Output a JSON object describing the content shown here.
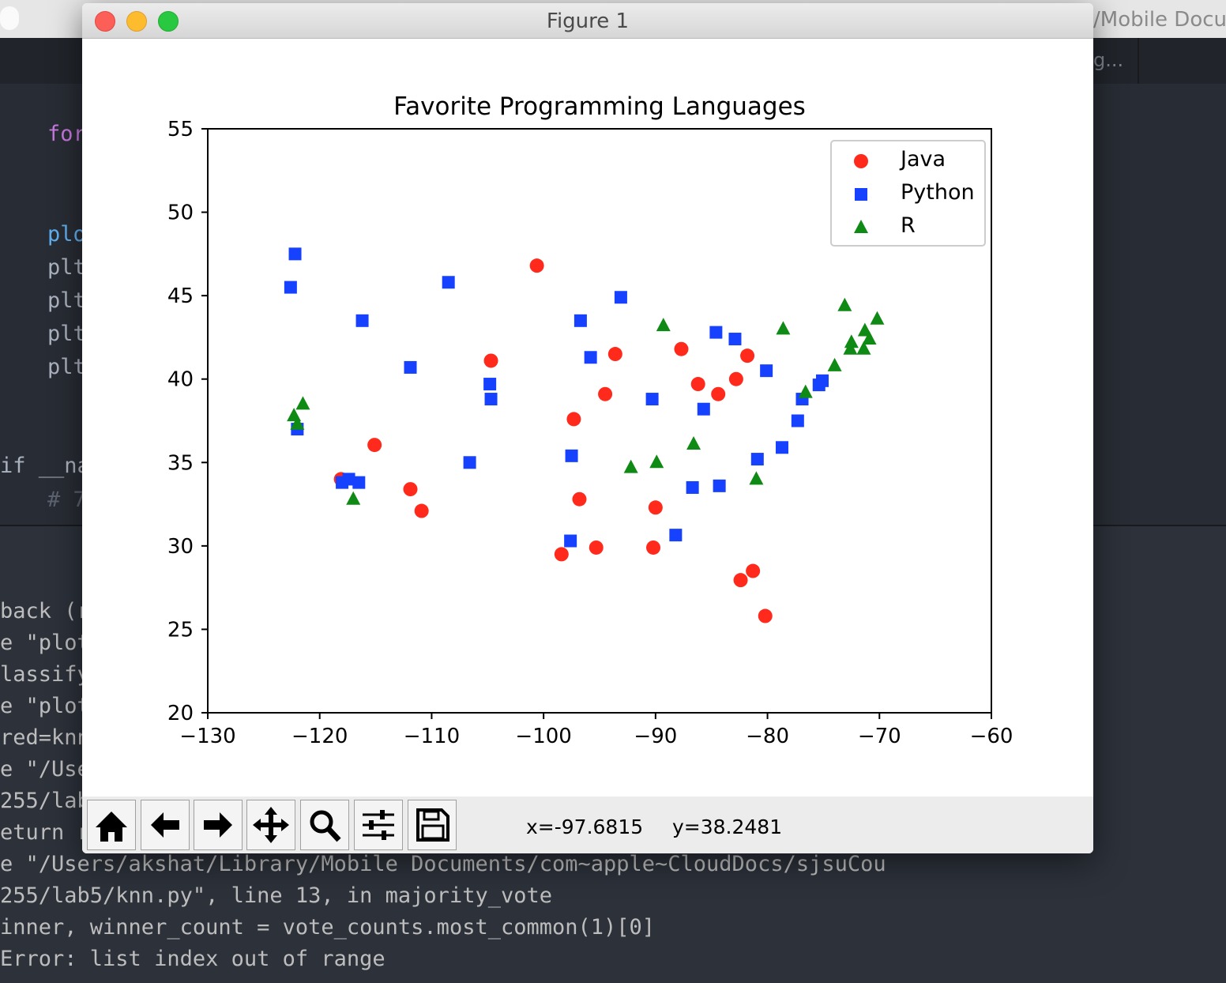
{
  "editor": {
    "path": "/Mobile Docur",
    "tab": "g...",
    "code": [
      "for",
      "plo",
      "plt",
      "plt",
      "plt",
      "plt",
      "if __na",
      "# 7"
    ]
  },
  "terminal": {
    "lines": [
      "back (r",
      "e \"plot",
      "lassify",
      "e \"plot",
      "red=knn",
      "e \"/Use",
      "255/lab",
      "eturn r",
      "e \"/Users/akshat/Library/Mobile Documents/com~apple~CloudDocs/sjsuCou",
      "255/lab5/knn.py\", line 13, in majority_vote",
      "inner, winner_count = vote_counts.most_common(1)[0]",
      "Error: list index out of range"
    ]
  },
  "window": {
    "title": "Figure 1",
    "status_x": "x=-97.6815",
    "status_y": "y=38.2481"
  },
  "chart_data": {
    "type": "scatter",
    "title": "Favorite Programming Languages",
    "xlim": [
      -130,
      -60
    ],
    "ylim": [
      20,
      55
    ],
    "xticks": [
      {
        "value": -130,
        "label": "−130"
      },
      {
        "value": -120,
        "label": "−120"
      },
      {
        "value": -110,
        "label": "−110"
      },
      {
        "value": -100,
        "label": "−100"
      },
      {
        "value": -90,
        "label": "−90"
      },
      {
        "value": -80,
        "label": "−80"
      },
      {
        "value": -70,
        "label": "−70"
      },
      {
        "value": -60,
        "label": "−60"
      }
    ],
    "yticks": [
      20,
      25,
      30,
      35,
      40,
      45,
      50,
      55
    ],
    "legend": "upper right",
    "series": [
      {
        "name": "Java",
        "color": "#ff2a1c",
        "marker": "o",
        "x": [
          -100.6,
          -104.7,
          -115.1,
          -118.1,
          -111.9,
          -110.9,
          -97.3,
          -96.8,
          -94.5,
          -93.6,
          -98.4,
          -95.3,
          -90.2,
          -90.0,
          -87.7,
          -86.2,
          -84.4,
          -82.8,
          -81.8,
          -82.4,
          -81.3,
          -80.2
        ],
        "values": [
          46.8,
          41.1,
          36.05,
          34.0,
          33.4,
          32.1,
          37.6,
          32.8,
          39.1,
          41.5,
          29.5,
          29.9,
          29.9,
          32.3,
          41.8,
          39.7,
          39.1,
          40.0,
          41.4,
          27.95,
          28.5,
          25.8
        ]
      },
      {
        "name": "Python",
        "color": "#1541ff",
        "marker": "s",
        "x": [
          -122.2,
          -122.6,
          -116.2,
          -108.5,
          -111.9,
          -104.8,
          -104.7,
          -122.0,
          -118.0,
          -117.4,
          -116.5,
          -106.6,
          -97.5,
          -97.6,
          -96.7,
          -95.8,
          -93.1,
          -90.3,
          -88.2,
          -86.7,
          -85.7,
          -84.6,
          -84.3,
          -82.9,
          -80.1,
          -80.9,
          -78.7,
          -77.3,
          -76.9,
          -75.4,
          -75.1
        ],
        "values": [
          47.5,
          45.5,
          43.5,
          45.8,
          40.7,
          39.7,
          38.8,
          37.0,
          33.8,
          34.0,
          33.8,
          35.0,
          35.4,
          30.3,
          43.5,
          41.3,
          44.9,
          38.8,
          30.65,
          33.5,
          38.2,
          42.8,
          33.6,
          42.4,
          40.5,
          35.2,
          35.9,
          37.5,
          38.8,
          39.65,
          39.9
        ]
      },
      {
        "name": "R",
        "color": "#0f8a14",
        "marker": "^",
        "x": [
          -122.3,
          -122.0,
          -121.5,
          -117.0,
          -92.2,
          -89.9,
          -89.3,
          -86.6,
          -81.0,
          -78.6,
          -76.6,
          -74.0,
          -73.1,
          -72.6,
          -72.5,
          -71.4,
          -71.3,
          -70.9,
          -70.2
        ],
        "values": [
          37.8,
          37.3,
          38.5,
          32.8,
          34.7,
          35.0,
          43.2,
          36.1,
          34.0,
          43.0,
          39.2,
          40.8,
          44.4,
          41.8,
          42.2,
          41.8,
          42.9,
          42.4,
          43.6
        ]
      }
    ]
  }
}
